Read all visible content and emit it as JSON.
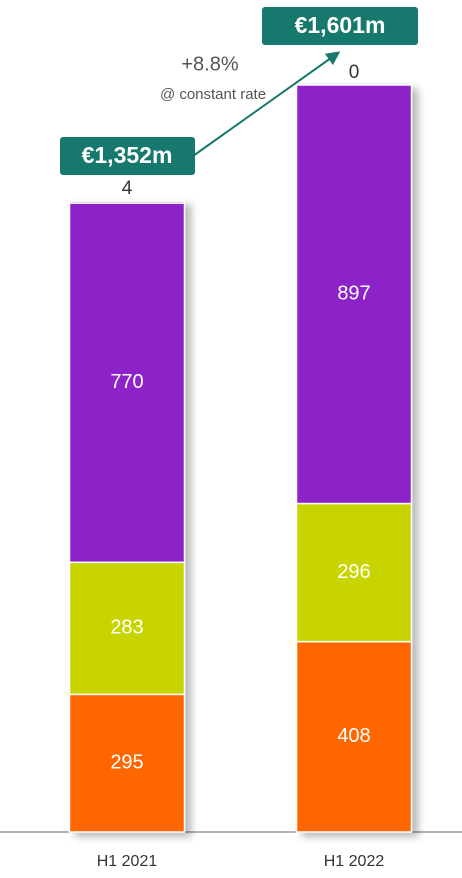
{
  "chart_data": {
    "type": "stacked_bar",
    "categories": [
      "H1 2021",
      "H1 2022"
    ],
    "series": [
      {
        "color": "#ff6600",
        "values": [
          295,
          408
        ]
      },
      {
        "color": "#c8d400",
        "values": [
          283,
          296
        ]
      },
      {
        "color": "#8e22c9",
        "values": [
          770,
          897
        ]
      },
      {
        "color": "#8a8a8a",
        "values": [
          4,
          0
        ]
      }
    ],
    "annotations": [
      "€1,352m",
      "+8.8%",
      "@ constant rate",
      "€1,601m"
    ],
    "annotation_color": "#17796d"
  }
}
